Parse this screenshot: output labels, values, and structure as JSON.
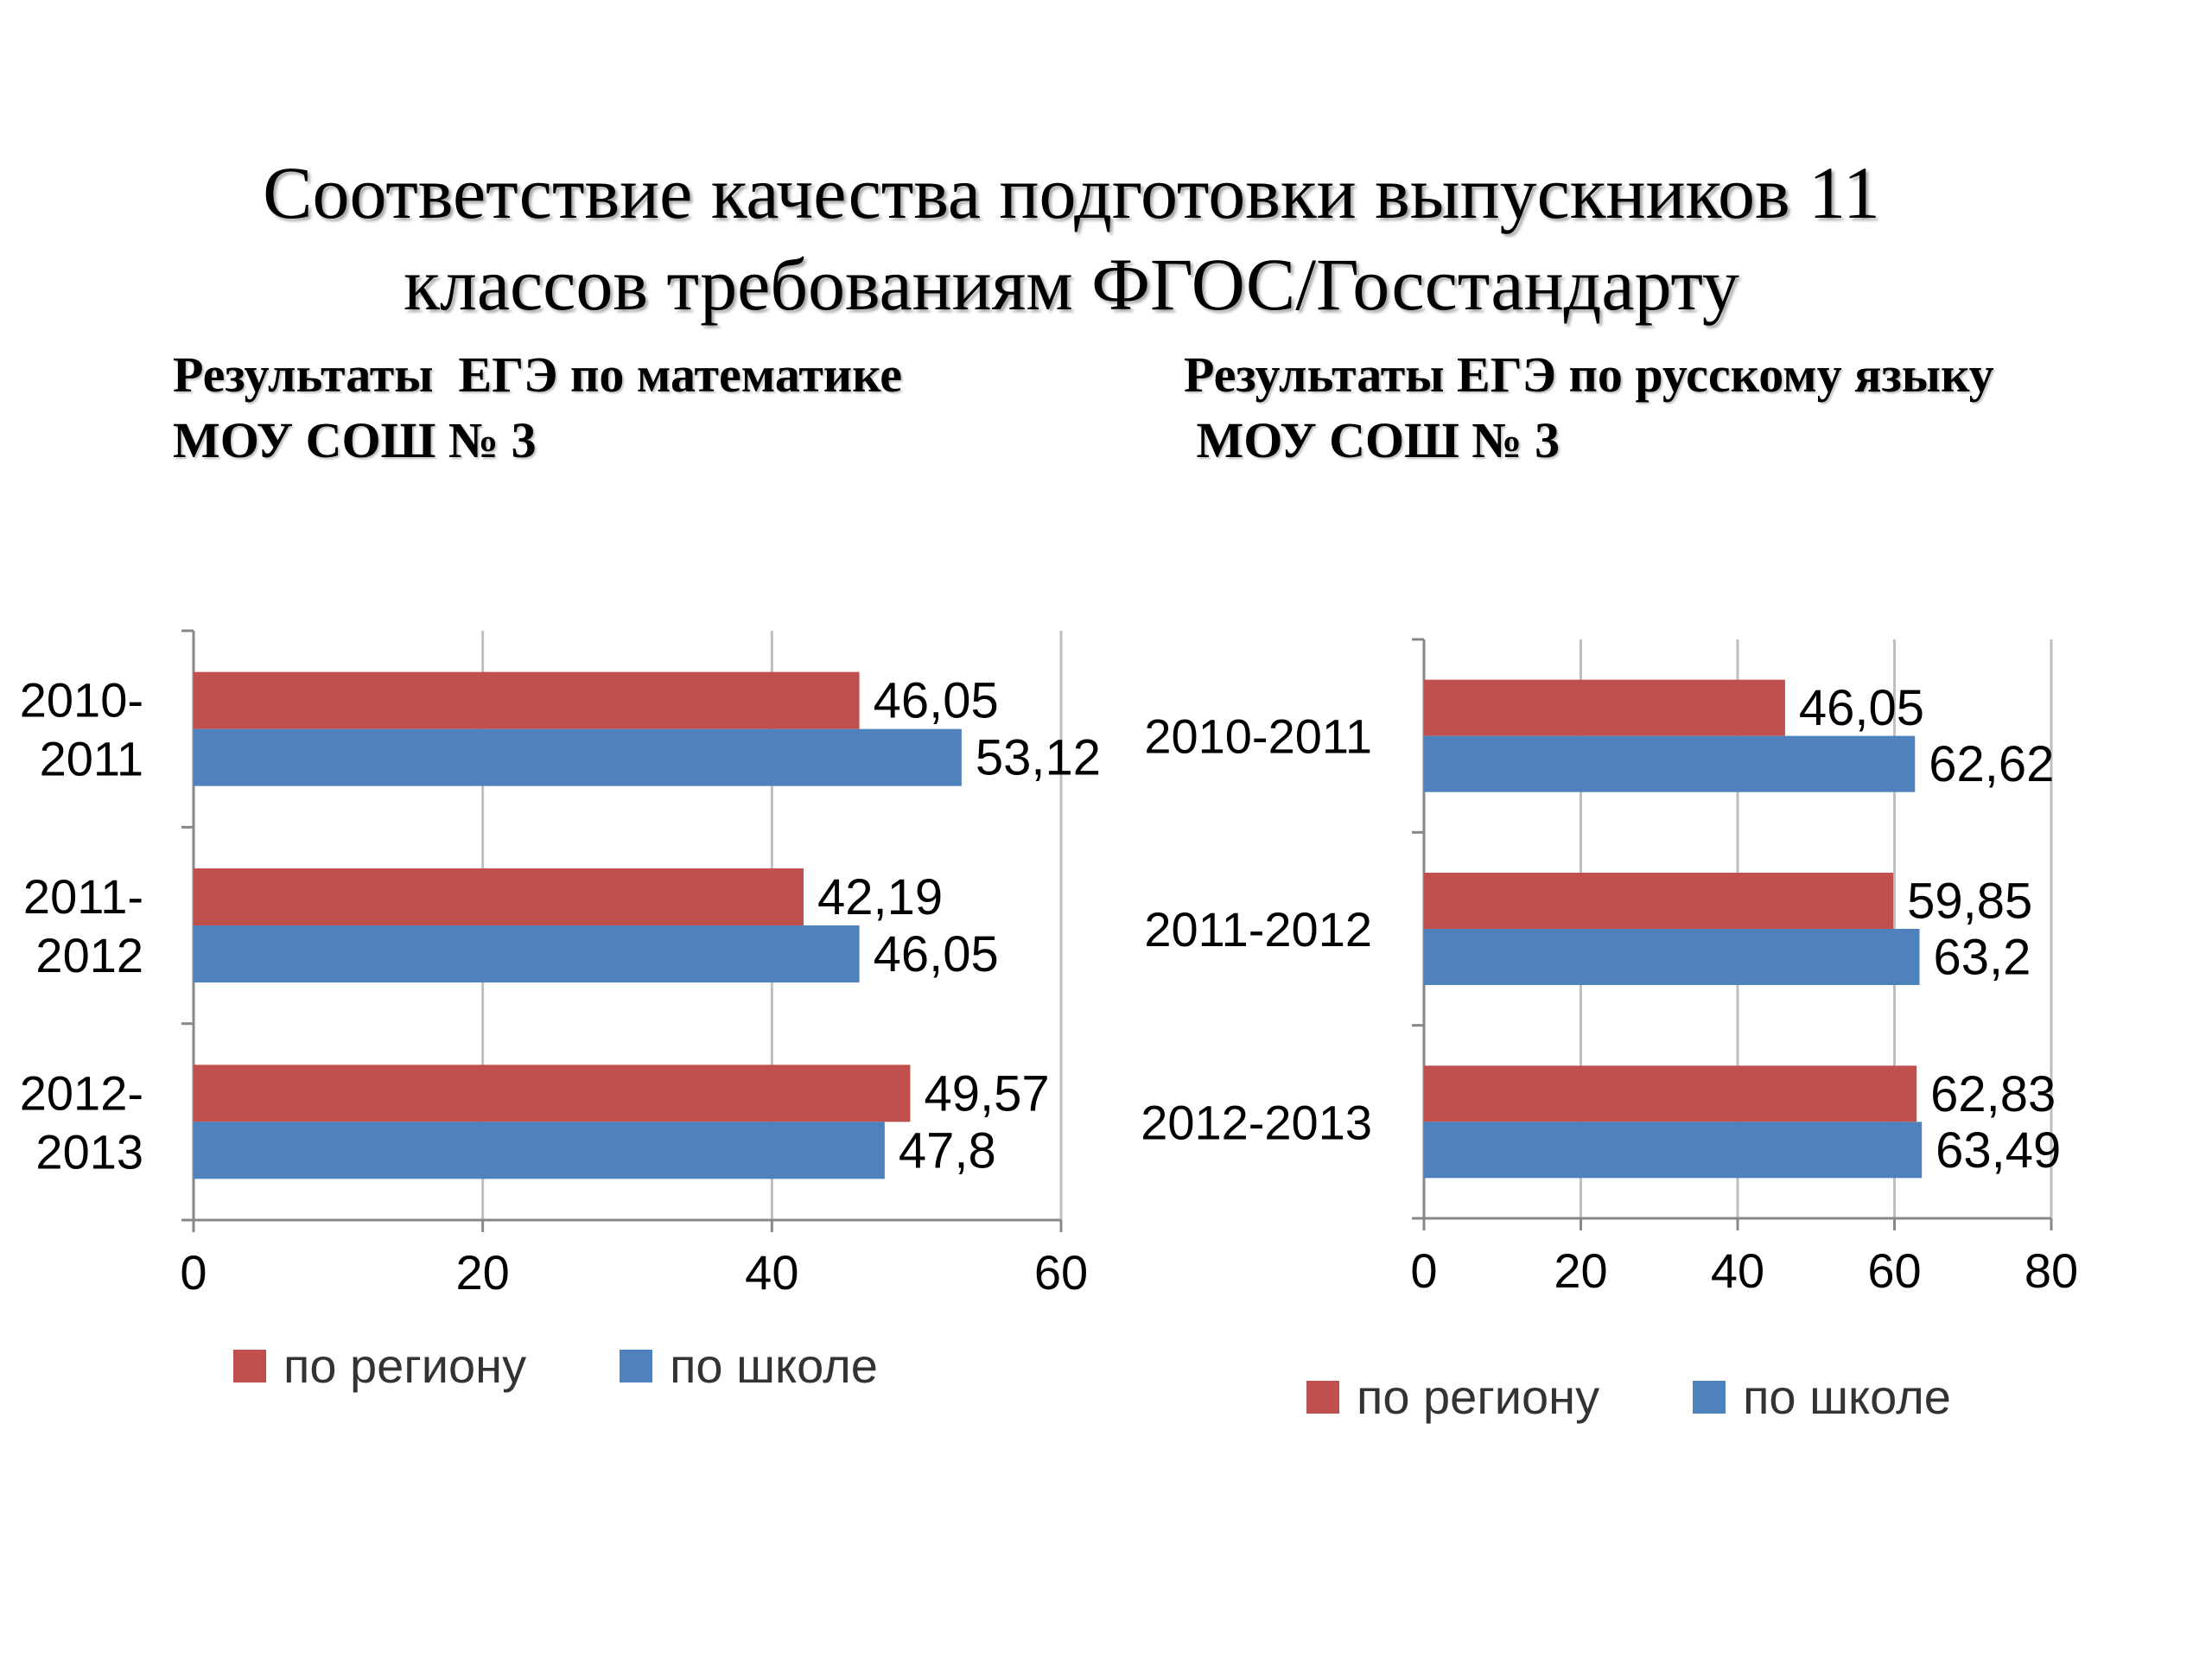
{
  "title": {
    "line1": "Соответствие качества подготовки выпускников 11",
    "line2": "классов требованиям ФГОС/Госстандарту"
  },
  "subtitles": {
    "left_line1": "Результаты  ЕГЭ по математике",
    "left_line2": "МОУ СОШ № 3",
    "right_line1": "Результаты ЕГЭ по русскому языку",
    "right_line2": " МОУ СОШ № 3"
  },
  "colors": {
    "region": "#C0504D",
    "school": "#4F81BD",
    "grid": "#BFBFBF",
    "axis": "#888888"
  },
  "chart_data": [
    {
      "type": "bar",
      "orientation": "horizontal",
      "subject": "Результаты  ЕГЭ по математике МОУ СОШ № 3",
      "categories": [
        "2010-2011",
        "2011-2012",
        "2012-2013"
      ],
      "category_labels": [
        [
          "2010-",
          "2011"
        ],
        [
          "2011-",
          "2012"
        ],
        [
          "2012-",
          "2013"
        ]
      ],
      "series": [
        {
          "name": "по региону",
          "values": [
            46.05,
            42.19,
            49.57
          ],
          "labels": [
            "46,05",
            "42,19",
            "49,57"
          ]
        },
        {
          "name": "по  школе",
          "values": [
            53.12,
            46.05,
            47.8
          ],
          "labels": [
            "53,12",
            "46,05",
            "47,8"
          ]
        }
      ],
      "xlim": [
        0,
        60
      ],
      "xticks": [
        0,
        20,
        40,
        60
      ],
      "grid": true,
      "legend": "bottom"
    },
    {
      "type": "bar",
      "orientation": "horizontal",
      "subject": "Результаты ЕГЭ по русскому языку МОУ СОШ № 3",
      "categories": [
        "2010-2011",
        "2011-2012",
        "2012-2013"
      ],
      "category_labels": [
        [
          "2010-2011"
        ],
        [
          "2011-2012"
        ],
        [
          "2012-2013"
        ]
      ],
      "series": [
        {
          "name": "по региону",
          "values": [
            46.05,
            59.85,
            62.83
          ],
          "labels": [
            "46,05",
            "59,85",
            "62,83"
          ]
        },
        {
          "name": "по  школе",
          "values": [
            62.62,
            63.2,
            63.49
          ],
          "labels": [
            "62,62",
            "63,2",
            "63,49"
          ]
        }
      ],
      "xlim": [
        0,
        80
      ],
      "xticks": [
        0,
        20,
        40,
        60,
        80
      ],
      "grid": true,
      "legend": "bottom"
    }
  ]
}
